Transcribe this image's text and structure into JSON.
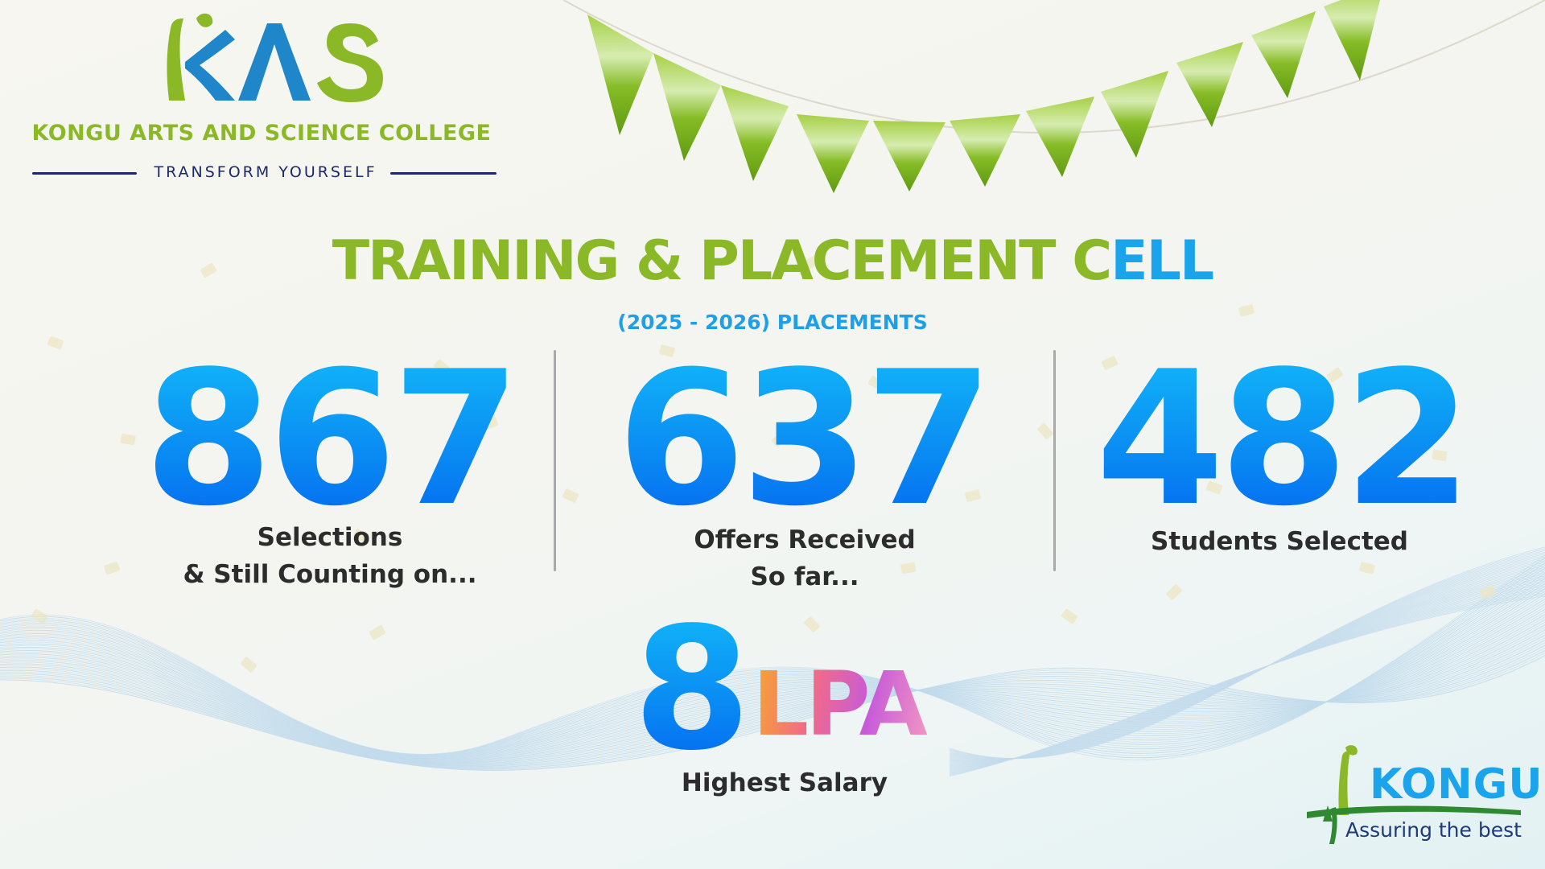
{
  "logo": {
    "mark_text": "KAS",
    "college_name": "KONGU ARTS AND SCIENCE COLLEGE",
    "tagline": "TRANSFORM YOURSELF"
  },
  "title": {
    "part1": "TRAINING & ",
    "part2": "PLACEMENT ",
    "part3": "C",
    "part4": "ELL"
  },
  "subtitle": "(2025 - 2026) PLACEMENTS",
  "stats": [
    {
      "value": "867",
      "label_line1": "Selections",
      "label_line2": "& Still Counting on..."
    },
    {
      "value": "637",
      "label_line1": "Offers Received",
      "label_line2": "So far..."
    },
    {
      "value": "482",
      "label_line1": "Students Selected",
      "label_line2": ""
    }
  ],
  "highest_salary": {
    "value": "8",
    "unit": "LPA",
    "label": "Highest Salary"
  },
  "footer_logo": {
    "name": "KONGU",
    "tagline": "Assuring the best"
  },
  "colors": {
    "green": "#8ab826",
    "blue": "#1aa4ec",
    "navy": "#1c2a6b",
    "stat_blue": "#0a8df3",
    "text_dark": "#2c2c2c"
  }
}
